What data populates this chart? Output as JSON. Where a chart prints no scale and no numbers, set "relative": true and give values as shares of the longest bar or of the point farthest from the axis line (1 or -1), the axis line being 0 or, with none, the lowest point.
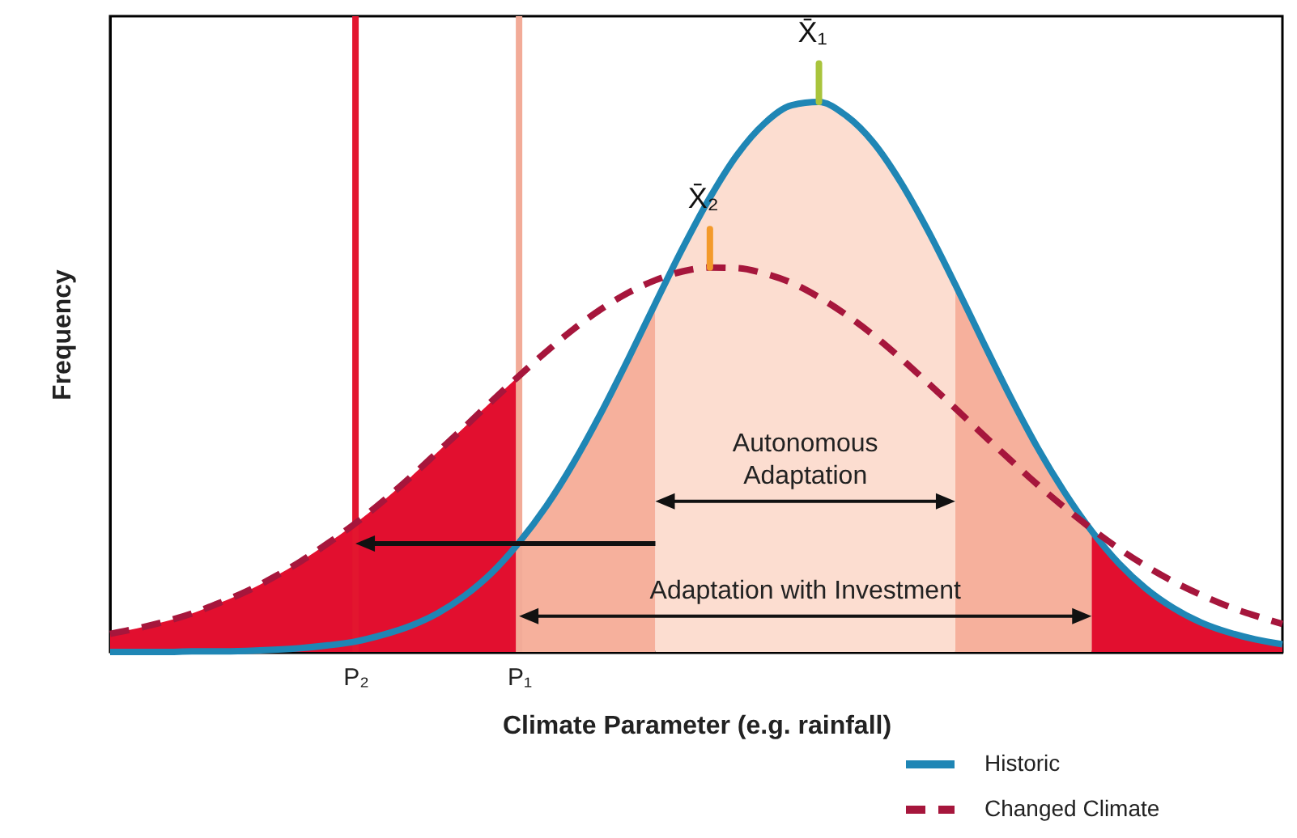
{
  "chart_data": {
    "type": "line",
    "relative": true,
    "xlabel": "Climate Parameter (e.g. rainfall)",
    "ylabel": "Frequency",
    "categories": [
      null,
      null,
      null,
      null,
      null,
      null,
      null,
      null,
      null,
      "P₂",
      null,
      null,
      null,
      null,
      null,
      "P₁",
      null,
      null,
      null,
      null,
      null,
      null,
      null,
      null,
      null,
      null,
      null,
      null,
      null,
      null,
      null,
      null,
      null,
      null,
      null,
      null,
      null,
      null,
      null,
      null,
      null,
      null,
      null,
      null
    ],
    "legend": "bottom right",
    "series": [
      {
        "type": "area",
        "color": "#e20f2f",
        "values": [
          0.033,
          0.043,
          0.055,
          0.07,
          0.089,
          0.11,
          0.136,
          0.165,
          0.198,
          0.234,
          0.274,
          0.317,
          0.363,
          0.409,
          0.456,
          0.502,
          null,
          null,
          null,
          null,
          null,
          null,
          null,
          null,
          null,
          null,
          null,
          null,
          null,
          null,
          null,
          null,
          null,
          null,
          null,
          null,
          null,
          null,
          null,
          null,
          null,
          null,
          null,
          null
        ]
      },
      {
        "type": "area",
        "color": "#e20f2f",
        "values": [
          null,
          null,
          null,
          null,
          null,
          null,
          null,
          null,
          null,
          null,
          null,
          null,
          null,
          null,
          null,
          null,
          null,
          null,
          null,
          null,
          null,
          null,
          null,
          null,
          null,
          null,
          null,
          null,
          null,
          null,
          null,
          null,
          null,
          null,
          null,
          null,
          0.22,
          0.161,
          0.115,
          0.08,
          0.054,
          0.036,
          0.023,
          0.014
        ]
      },
      {
        "type": "area",
        "color": "#f6b09c",
        "values": [
          null,
          null,
          null,
          null,
          null,
          null,
          null,
          null,
          null,
          null,
          null,
          null,
          null,
          null,
          null,
          0.199,
          0.265,
          0.344,
          0.434,
          0.532,
          0.634,
          null,
          null,
          null,
          null,
          null,
          null,
          null,
          null,
          null,
          null,
          null,
          null,
          null,
          null,
          null,
          null,
          null,
          null,
          null,
          null,
          null,
          null,
          null
        ]
      },
      {
        "type": "area",
        "color": "#f6b09c",
        "values": [
          null,
          null,
          null,
          null,
          null,
          null,
          null,
          null,
          null,
          null,
          null,
          null,
          null,
          null,
          null,
          null,
          null,
          null,
          null,
          null,
          null,
          null,
          null,
          null,
          null,
          null,
          null,
          null,
          null,
          null,
          null,
          0.668,
          0.566,
          0.466,
          0.373,
          0.291,
          0.22,
          null,
          null,
          null,
          null,
          null,
          null,
          null
        ]
      },
      {
        "type": "area",
        "color": "#fcddd0",
        "values": [
          null,
          null,
          null,
          null,
          null,
          null,
          null,
          null,
          null,
          null,
          null,
          null,
          null,
          null,
          null,
          null,
          null,
          null,
          null,
          null,
          0.634,
          0.734,
          0.826,
          0.904,
          0.961,
          0.994,
          1.0,
          0.975,
          0.926,
          0.854,
          0.766,
          0.668,
          null,
          null,
          null,
          null,
          null,
          null,
          null,
          null,
          null,
          null,
          null,
          null
        ]
      },
      {
        "name": "Historic",
        "color": "#1f86b5",
        "line_style": "solid",
        "values": [
          0,
          0,
          0,
          0.001,
          0.001,
          0.002,
          0.004,
          0.007,
          0.012,
          0.019,
          0.031,
          0.047,
          0.07,
          0.102,
          0.144,
          0.199,
          0.265,
          0.344,
          0.434,
          0.532,
          0.634,
          0.734,
          0.826,
          0.904,
          0.961,
          0.994,
          1.0,
          0.975,
          0.926,
          0.854,
          0.766,
          0.668,
          0.566,
          0.466,
          0.373,
          0.291,
          0.22,
          0.161,
          0.115,
          0.08,
          0.054,
          0.036,
          0.023,
          0.014
        ]
      },
      {
        "name": "Changed Climate",
        "color": "#a6163c",
        "line_style": "dashed",
        "values": [
          0.033,
          0.043,
          0.055,
          0.07,
          0.089,
          0.11,
          0.136,
          0.165,
          0.198,
          0.234,
          0.274,
          0.317,
          0.363,
          0.409,
          0.456,
          0.502,
          0.546,
          0.587,
          0.623,
          0.653,
          0.676,
          0.692,
          0.699,
          0.698,
          0.688,
          0.671,
          0.645,
          0.613,
          0.576,
          0.534,
          0.489,
          0.443,
          0.396,
          0.35,
          0.305,
          0.263,
          0.224,
          0.188,
          0.156,
          0.128,
          0.104,
          0.083,
          0.066,
          0.051
        ]
      }
    ],
    "ref_lines": [
      {
        "axis": "x",
        "value": "P₂",
        "color": "#e3162f"
      },
      {
        "axis": "x",
        "value": "P₁",
        "color": "#f2ab98"
      }
    ],
    "annotations": [
      {
        "text": "X̄₁",
        "y": 1.0
      },
      {
        "text": "X̄₂",
        "y": 0.699
      },
      "Autonomous\nAdaptation",
      "Adaptation with Investment"
    ]
  }
}
